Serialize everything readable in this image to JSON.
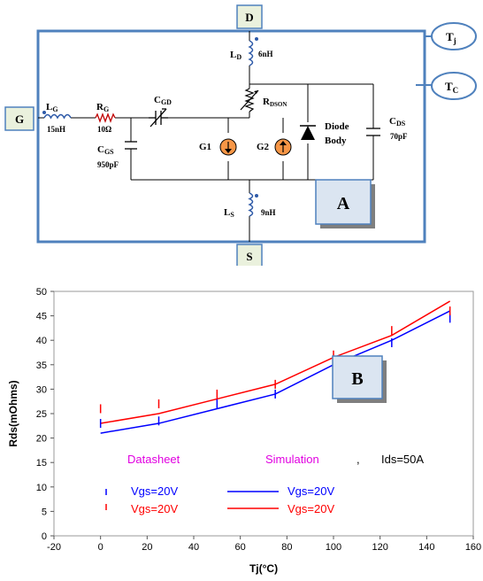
{
  "colors": {
    "frame": "#4f81bd",
    "box_fill": "#dbe5f1",
    "tab_fill": "#eaf1dd",
    "inductor": "#2e5aa8",
    "source_fill": "#f79646",
    "blue_series": "#0000ff",
    "red_series": "#ff0000",
    "magenta_label": "#e100e1"
  },
  "circuit": {
    "terminals": {
      "gate": "G",
      "drain": "D",
      "source": "S"
    },
    "temps": {
      "tj_main": "T",
      "tj_sub": "j",
      "tc_main": "T",
      "tc_sub": "C"
    },
    "components": {
      "lg_main": "L",
      "lg_sub": "G",
      "lg_value": "15nH",
      "rg_main": "R",
      "rg_sub": "G",
      "rg_value": "10Ω",
      "cgd_main": "C",
      "cgd_sub": "GD",
      "cgs_main": "C",
      "cgs_sub": "GS",
      "cgs_value": "950pF",
      "ld_main": "L",
      "ld_sub": "D",
      "ld_value": "6nH",
      "rdson_main": "R",
      "rdson_sub": "DSON",
      "g1": "G1",
      "g2": "G2",
      "diode_line1": "Diode",
      "diode_line2": "Body",
      "cds_main": "C",
      "cds_sub": "DS",
      "cds_value": "70pF",
      "ls_main": "L",
      "ls_sub": "S",
      "ls_value": "9nH"
    },
    "panel_label": "A"
  },
  "chart_panel_label": "B",
  "chart_data": {
    "type": "line",
    "xlabel": "Tj(°C)",
    "ylabel": "Rds(mOhms)",
    "xlim": [
      -20,
      160
    ],
    "ylim": [
      0,
      50
    ],
    "xticks": [
      "-20",
      "0",
      "20",
      "40",
      "60",
      "80",
      "100",
      "120",
      "140",
      "160"
    ],
    "yticks": [
      "0",
      "5",
      "10",
      "15",
      "20",
      "25",
      "30",
      "35",
      "40",
      "45",
      "50"
    ],
    "grid": false,
    "series": [
      {
        "name": "Vgs=20V",
        "source": "Simulation",
        "color": "#0000ff",
        "style": "line",
        "x": [
          0,
          25,
          50,
          75,
          100,
          125,
          150
        ],
        "y": [
          21,
          23,
          26,
          29,
          35,
          40,
          46
        ]
      },
      {
        "name": "Vgs=20V",
        "source": "Simulation",
        "color": "#ff0000",
        "style": "line",
        "x": [
          0,
          25,
          50,
          75,
          100,
          125,
          150
        ],
        "y": [
          23,
          25,
          28,
          31,
          36.5,
          41,
          48
        ]
      },
      {
        "name": "Vgs=20V",
        "source": "Datasheet",
        "color": "#0000ff",
        "style": "marker",
        "x": [
          0,
          25,
          50,
          75,
          100,
          125,
          150
        ],
        "y": [
          23,
          23.5,
          27,
          29,
          35,
          39.5,
          44.5
        ]
      },
      {
        "name": "Vgs=20V",
        "source": "Datasheet",
        "color": "#ff0000",
        "style": "marker",
        "x": [
          0,
          25,
          50,
          75,
          100,
          125,
          150
        ],
        "y": [
          26,
          27,
          29,
          31,
          37,
          42,
          46
        ]
      }
    ],
    "legend": {
      "datasheet_label": "Datasheet",
      "simulation_label": "Simulation",
      "separator": ",",
      "ids_label": "Ids=50A",
      "entries": [
        "Vgs=20V",
        "Vgs=20V",
        "Vgs=20V",
        "Vgs=20V"
      ]
    }
  }
}
